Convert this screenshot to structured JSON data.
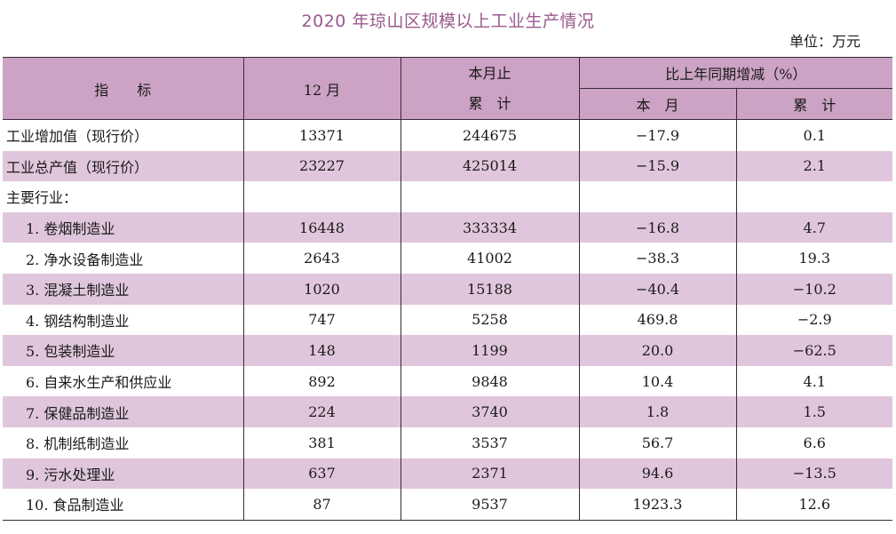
{
  "title": "2020 年琼山区规模以上工业生产情况",
  "unit": "单位：万元",
  "header": {
    "indicator": "指　　标",
    "month": "12 月",
    "ytd_top": "本月止",
    "ytd_bottom": "累　计",
    "change_group": "比上年同期增减（%）",
    "change_month": "本　月",
    "change_cum": "累　计"
  },
  "rows": [
    {
      "name": "工业增加值（现行价）",
      "month": "13371",
      "ytd": "244675",
      "chg_month": "−17.9",
      "chg_cum": "0.1"
    },
    {
      "name": "工业总产值（现行价）",
      "month": "23227",
      "ytd": "425014",
      "chg_month": "−15.9",
      "chg_cum": "2.1"
    },
    {
      "name": "主要行业：",
      "month": "",
      "ytd": "",
      "chg_month": "",
      "chg_cum": ""
    },
    {
      "name": "1. 卷烟制造业",
      "month": "16448",
      "ytd": "333334",
      "chg_month": "−16.8",
      "chg_cum": "4.7"
    },
    {
      "name": "2. 净水设备制造业",
      "month": "2643",
      "ytd": "41002",
      "chg_month": "−38.3",
      "chg_cum": "19.3"
    },
    {
      "name": "3. 混凝土制造业",
      "month": "1020",
      "ytd": "15188",
      "chg_month": "−40.4",
      "chg_cum": "−10.2"
    },
    {
      "name": "4. 钢结构制造业",
      "month": "747",
      "ytd": "5258",
      "chg_month": "469.8",
      "chg_cum": "−2.9"
    },
    {
      "name": "5. 包装制造业",
      "month": "148",
      "ytd": "1199",
      "chg_month": "20.0",
      "chg_cum": "−62.5"
    },
    {
      "name": "6. 自来水生产和供应业",
      "month": "892",
      "ytd": "9848",
      "chg_month": "10.4",
      "chg_cum": "4.1"
    },
    {
      "name": "7. 保健品制造业",
      "month": "224",
      "ytd": "3740",
      "chg_month": "1.8",
      "chg_cum": "1.5"
    },
    {
      "name": "8. 机制纸制造业",
      "month": "381",
      "ytd": "3537",
      "chg_month": "56.7",
      "chg_cum": "6.6"
    },
    {
      "name": "9. 污水处理业",
      "month": "637",
      "ytd": "2371",
      "chg_month": "94.6",
      "chg_cum": "−13.5"
    },
    {
      "name": "10. 食品制造业",
      "month": "87",
      "ytd": "9537",
      "chg_month": "1923.3",
      "chg_cum": "12.6"
    }
  ],
  "colors": {
    "title": "#9a5a8e",
    "header_bg": "#cca3c4",
    "row_shade": "#e0c6dc",
    "border": "#3a2a36"
  }
}
